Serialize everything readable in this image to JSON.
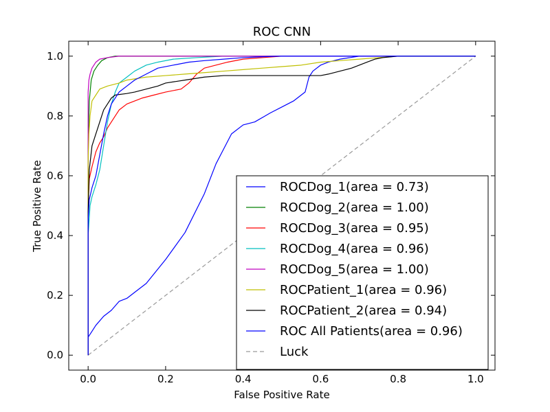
{
  "chart_data": {
    "type": "line",
    "title": "ROC CNN",
    "xlabel": "False Positive Rate",
    "ylabel": "True Positive Rate",
    "xlim": [
      -0.05,
      1.05
    ],
    "ylim": [
      -0.05,
      1.05
    ],
    "xticks": [
      "0.0",
      "0.2",
      "0.4",
      "0.6",
      "0.8",
      "1.0"
    ],
    "yticks": [
      "0.0",
      "0.2",
      "0.4",
      "0.6",
      "0.8",
      "1.0"
    ],
    "grid": false,
    "legend_position": "lower-right",
    "series": [
      {
        "name": "ROCDog_1(area = 0.73)",
        "color": "#0000ff",
        "x": [
          0.0,
          0.0,
          0.01,
          0.02,
          0.04,
          0.06,
          0.08,
          0.1,
          0.12,
          0.15,
          0.2,
          0.25,
          0.3,
          0.33,
          0.35,
          0.37,
          0.4,
          0.43,
          0.47,
          0.5,
          0.53,
          0.56,
          0.57,
          0.58,
          0.6,
          0.62,
          0.65,
          0.7,
          0.75,
          0.8,
          1.0
        ],
        "y": [
          0.0,
          0.06,
          0.08,
          0.1,
          0.13,
          0.15,
          0.18,
          0.19,
          0.21,
          0.24,
          0.32,
          0.41,
          0.54,
          0.64,
          0.69,
          0.74,
          0.77,
          0.78,
          0.81,
          0.83,
          0.85,
          0.88,
          0.93,
          0.95,
          0.97,
          0.98,
          0.99,
          1.0,
          1.0,
          1.0,
          1.0
        ]
      },
      {
        "name": "ROCDog_2(area = 1.00)",
        "color": "#008000",
        "x": [
          0.0,
          0.0,
          0.003,
          0.008,
          0.015,
          0.025,
          0.035,
          0.05,
          0.07,
          0.1,
          0.2,
          0.5,
          1.0
        ],
        "y": [
          0.0,
          0.7,
          0.85,
          0.92,
          0.95,
          0.97,
          0.985,
          0.995,
          1.0,
          1.0,
          1.0,
          1.0,
          1.0
        ]
      },
      {
        "name": "ROCDog_3(area = 0.95)",
        "color": "#ff0000",
        "x": [
          0.0,
          0.0,
          0.003,
          0.01,
          0.02,
          0.03,
          0.04,
          0.05,
          0.06,
          0.07,
          0.08,
          0.1,
          0.12,
          0.14,
          0.17,
          0.2,
          0.24,
          0.26,
          0.28,
          0.3,
          0.33,
          0.36,
          0.4,
          0.45,
          0.5,
          0.6,
          0.7,
          1.0
        ],
        "y": [
          0.0,
          0.5,
          0.59,
          0.63,
          0.68,
          0.71,
          0.73,
          0.76,
          0.78,
          0.8,
          0.82,
          0.84,
          0.85,
          0.86,
          0.87,
          0.88,
          0.89,
          0.91,
          0.94,
          0.96,
          0.97,
          0.98,
          0.99,
          0.995,
          1.0,
          1.0,
          1.0,
          1.0
        ]
      },
      {
        "name": "ROCDog_4(area = 0.96)",
        "color": "#00bfbf",
        "x": [
          0.0,
          0.0,
          0.005,
          0.01,
          0.02,
          0.03,
          0.04,
          0.05,
          0.06,
          0.07,
          0.08,
          0.1,
          0.12,
          0.15,
          0.18,
          0.22,
          0.28,
          0.35,
          0.5,
          0.7,
          1.0
        ],
        "y": [
          0.0,
          0.4,
          0.5,
          0.53,
          0.57,
          0.62,
          0.7,
          0.78,
          0.84,
          0.88,
          0.91,
          0.93,
          0.95,
          0.97,
          0.98,
          0.99,
          0.995,
          1.0,
          1.0,
          1.0,
          1.0
        ]
      },
      {
        "name": "ROCDog_5(area = 1.00)",
        "color": "#bf00bf",
        "x": [
          0.0,
          0.0,
          0.002,
          0.005,
          0.01,
          0.02,
          0.03,
          0.05,
          0.08,
          0.12,
          0.3,
          0.6,
          1.0
        ],
        "y": [
          0.0,
          0.88,
          0.92,
          0.94,
          0.96,
          0.98,
          0.99,
          0.995,
          1.0,
          1.0,
          1.0,
          1.0,
          1.0
        ]
      },
      {
        "name": "ROCPatient_1(area = 0.96)",
        "color": "#bfbf00",
        "x": [
          0.0,
          0.0,
          0.002,
          0.005,
          0.01,
          0.02,
          0.03,
          0.05,
          0.08,
          0.1,
          0.15,
          0.2,
          0.25,
          0.3,
          0.35,
          0.4,
          0.45,
          0.5,
          0.55,
          0.6,
          0.65,
          0.7,
          0.75,
          0.8,
          0.9,
          1.0
        ],
        "y": [
          0.0,
          0.65,
          0.74,
          0.8,
          0.85,
          0.87,
          0.89,
          0.9,
          0.91,
          0.92,
          0.93,
          0.935,
          0.94,
          0.945,
          0.95,
          0.955,
          0.96,
          0.965,
          0.97,
          0.98,
          0.985,
          0.99,
          0.995,
          1.0,
          1.0,
          1.0
        ]
      },
      {
        "name": "ROCPatient_2(area = 0.94)",
        "color": "#000000",
        "x": [
          0.0,
          0.0,
          0.003,
          0.01,
          0.02,
          0.03,
          0.04,
          0.05,
          0.06,
          0.07,
          0.1,
          0.12,
          0.15,
          0.18,
          0.2,
          0.25,
          0.3,
          0.35,
          0.4,
          0.5,
          0.6,
          0.62,
          0.65,
          0.68,
          0.7,
          0.72,
          0.74,
          0.76,
          0.8,
          1.0
        ],
        "y": [
          0.0,
          0.48,
          0.62,
          0.7,
          0.74,
          0.78,
          0.82,
          0.84,
          0.86,
          0.87,
          0.875,
          0.88,
          0.89,
          0.9,
          0.91,
          0.92,
          0.93,
          0.935,
          0.935,
          0.935,
          0.935,
          0.94,
          0.95,
          0.96,
          0.97,
          0.98,
          0.99,
          0.995,
          1.0,
          1.0
        ]
      },
      {
        "name": "ROC All Patients(area = 0.96)",
        "color": "#0000ff",
        "x": [
          0.0,
          0.0,
          0.003,
          0.01,
          0.02,
          0.03,
          0.04,
          0.05,
          0.06,
          0.08,
          0.1,
          0.12,
          0.15,
          0.18,
          0.22,
          0.26,
          0.3,
          0.35,
          0.4,
          0.45,
          0.5,
          0.6,
          0.7,
          1.0
        ],
        "y": [
          0.0,
          0.45,
          0.52,
          0.56,
          0.6,
          0.67,
          0.74,
          0.8,
          0.84,
          0.88,
          0.9,
          0.92,
          0.94,
          0.96,
          0.97,
          0.98,
          0.985,
          0.99,
          0.995,
          0.998,
          1.0,
          1.0,
          1.0,
          1.0
        ]
      },
      {
        "name": "Luck",
        "color": "#999999",
        "dashed": true,
        "x": [
          0.0,
          1.0
        ],
        "y": [
          0.0,
          1.0
        ]
      }
    ]
  }
}
